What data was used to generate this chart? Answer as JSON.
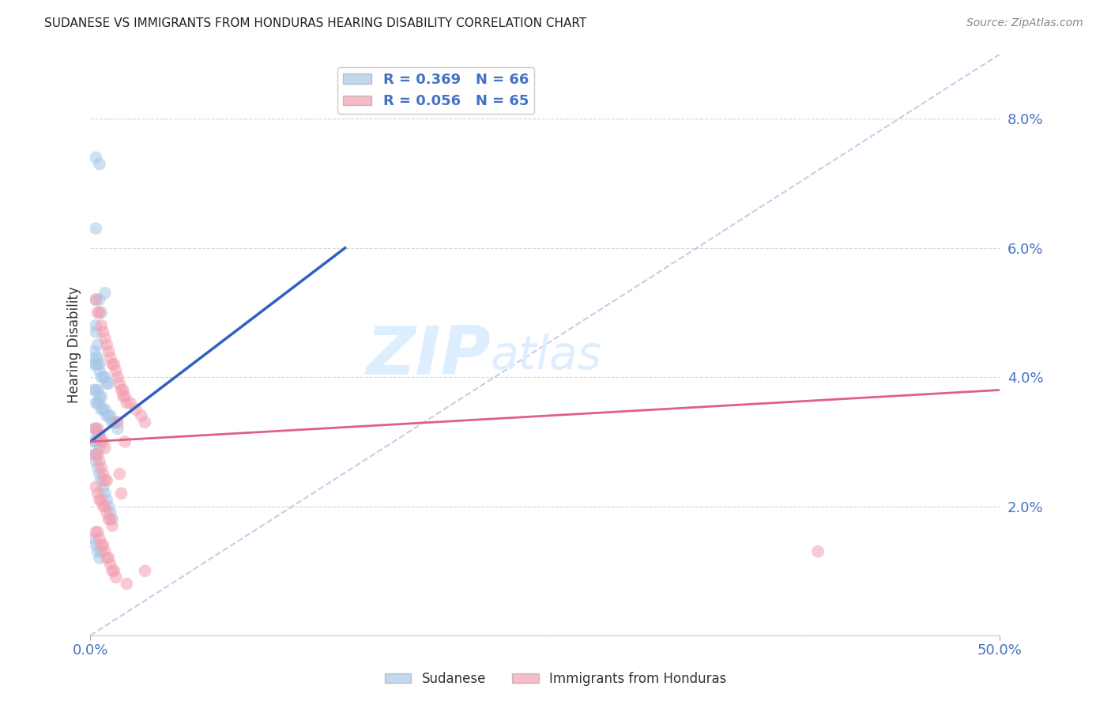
{
  "title": "SUDANESE VS IMMIGRANTS FROM HONDURAS HEARING DISABILITY CORRELATION CHART",
  "source": "Source: ZipAtlas.com",
  "ylabel": "Hearing Disability",
  "xlim": [
    0.0,
    0.5
  ],
  "ylim": [
    0.0,
    0.09
  ],
  "yticks": [
    0.0,
    0.02,
    0.04,
    0.06,
    0.08
  ],
  "ytick_labels": [
    "",
    "2.0%",
    "4.0%",
    "6.0%",
    "8.0%"
  ],
  "xticks": [
    0.0,
    0.5
  ],
  "xtick_labels": [
    "0.0%",
    "50.0%"
  ],
  "blue_R": 0.369,
  "blue_N": 66,
  "pink_R": 0.056,
  "pink_N": 65,
  "blue_color": "#a8c8e8",
  "pink_color": "#f4a0b0",
  "blue_line_color": "#3060c0",
  "pink_line_color": "#e06080",
  "watermark_zip": "ZIP",
  "watermark_atlas": "atlas",
  "watermark_color": "#ddeeff",
  "blue_scatter_x": [
    0.003,
    0.005,
    0.003,
    0.008,
    0.003,
    0.005,
    0.006,
    0.003,
    0.003,
    0.004,
    0.002,
    0.003,
    0.004,
    0.005,
    0.002,
    0.003,
    0.004,
    0.005,
    0.006,
    0.007,
    0.008,
    0.009,
    0.01,
    0.002,
    0.003,
    0.004,
    0.005,
    0.006,
    0.003,
    0.004,
    0.005,
    0.006,
    0.007,
    0.008,
    0.009,
    0.01,
    0.011,
    0.012,
    0.013,
    0.014,
    0.015,
    0.002,
    0.003,
    0.004,
    0.005,
    0.002,
    0.003,
    0.004,
    0.005,
    0.002,
    0.003,
    0.003,
    0.004,
    0.005,
    0.006,
    0.007,
    0.008,
    0.009,
    0.01,
    0.011,
    0.012,
    0.002,
    0.003,
    0.004,
    0.005,
    0.006
  ],
  "blue_scatter_y": [
    0.074,
    0.073,
    0.063,
    0.053,
    0.052,
    0.052,
    0.05,
    0.048,
    0.047,
    0.045,
    0.044,
    0.043,
    0.043,
    0.042,
    0.042,
    0.042,
    0.042,
    0.041,
    0.04,
    0.04,
    0.04,
    0.039,
    0.039,
    0.038,
    0.038,
    0.038,
    0.037,
    0.037,
    0.036,
    0.036,
    0.036,
    0.035,
    0.035,
    0.035,
    0.034,
    0.034,
    0.034,
    0.033,
    0.033,
    0.033,
    0.032,
    0.032,
    0.032,
    0.031,
    0.031,
    0.03,
    0.03,
    0.03,
    0.029,
    0.028,
    0.028,
    0.027,
    0.026,
    0.025,
    0.024,
    0.023,
    0.022,
    0.021,
    0.02,
    0.019,
    0.018,
    0.015,
    0.014,
    0.013,
    0.012,
    0.013
  ],
  "pink_scatter_x": [
    0.003,
    0.004,
    0.005,
    0.006,
    0.007,
    0.008,
    0.009,
    0.01,
    0.011,
    0.012,
    0.013,
    0.014,
    0.015,
    0.016,
    0.017,
    0.018,
    0.019,
    0.02,
    0.022,
    0.025,
    0.028,
    0.03,
    0.003,
    0.004,
    0.005,
    0.006,
    0.007,
    0.008,
    0.003,
    0.004,
    0.005,
    0.006,
    0.007,
    0.008,
    0.009,
    0.003,
    0.004,
    0.005,
    0.006,
    0.007,
    0.008,
    0.009,
    0.01,
    0.011,
    0.012,
    0.003,
    0.004,
    0.005,
    0.006,
    0.007,
    0.008,
    0.009,
    0.01,
    0.011,
    0.012,
    0.013,
    0.014,
    0.015,
    0.016,
    0.017,
    0.018,
    0.019,
    0.02,
    0.4,
    0.03
  ],
  "pink_scatter_y": [
    0.052,
    0.05,
    0.05,
    0.048,
    0.047,
    0.046,
    0.045,
    0.044,
    0.043,
    0.042,
    0.042,
    0.041,
    0.04,
    0.039,
    0.038,
    0.037,
    0.037,
    0.036,
    0.036,
    0.035,
    0.034,
    0.033,
    0.032,
    0.032,
    0.031,
    0.03,
    0.03,
    0.029,
    0.028,
    0.028,
    0.027,
    0.026,
    0.025,
    0.024,
    0.024,
    0.023,
    0.022,
    0.021,
    0.021,
    0.02,
    0.02,
    0.019,
    0.018,
    0.018,
    0.017,
    0.016,
    0.016,
    0.015,
    0.014,
    0.014,
    0.013,
    0.012,
    0.012,
    0.011,
    0.01,
    0.01,
    0.009,
    0.033,
    0.025,
    0.022,
    0.038,
    0.03,
    0.008,
    0.013,
    0.01
  ],
  "blue_line_x": [
    0.0,
    0.14
  ],
  "blue_line_y": [
    0.03,
    0.06
  ],
  "pink_line_x": [
    0.0,
    0.5
  ],
  "pink_line_y": [
    0.03,
    0.038
  ]
}
